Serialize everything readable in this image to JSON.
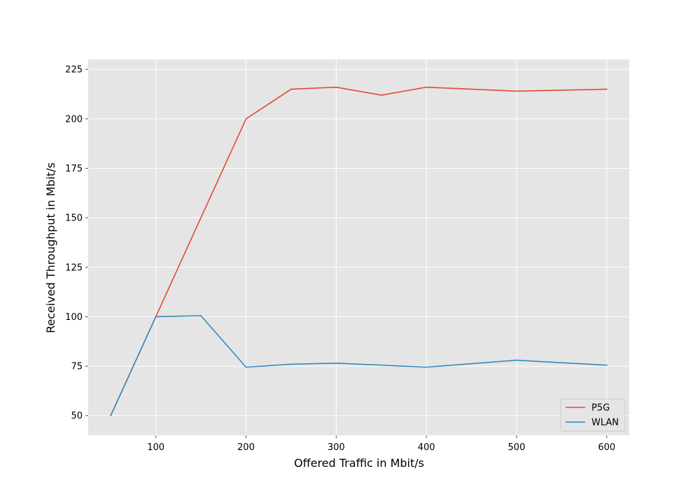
{
  "chart_data": {
    "type": "line",
    "title": "",
    "xlabel": "Offered Traffic in Mbit/s",
    "ylabel": "Received Throughput in Mbit/s",
    "xlim": [
      25,
      625
    ],
    "ylim": [
      40,
      230
    ],
    "xticks": [
      100,
      200,
      300,
      400,
      500,
      600
    ],
    "yticks": [
      50,
      75,
      100,
      125,
      150,
      175,
      200,
      225
    ],
    "grid": true,
    "legend_position": "lower-right",
    "background_color": "#e5e5e5",
    "series": [
      {
        "name": "P5G",
        "color": "#e24a33",
        "x": [
          50,
          100,
          150,
          200,
          250,
          300,
          350,
          400,
          500,
          600
        ],
        "y": [
          50,
          100,
          150,
          200,
          215,
          216,
          212,
          216,
          214,
          215
        ]
      },
      {
        "name": "WLAN",
        "color": "#348abd",
        "x": [
          50,
          100,
          150,
          200,
          250,
          300,
          400,
          500,
          600
        ],
        "y": [
          50,
          100,
          100.5,
          74.5,
          76,
          76.5,
          74.5,
          78,
          75.5
        ]
      }
    ]
  }
}
